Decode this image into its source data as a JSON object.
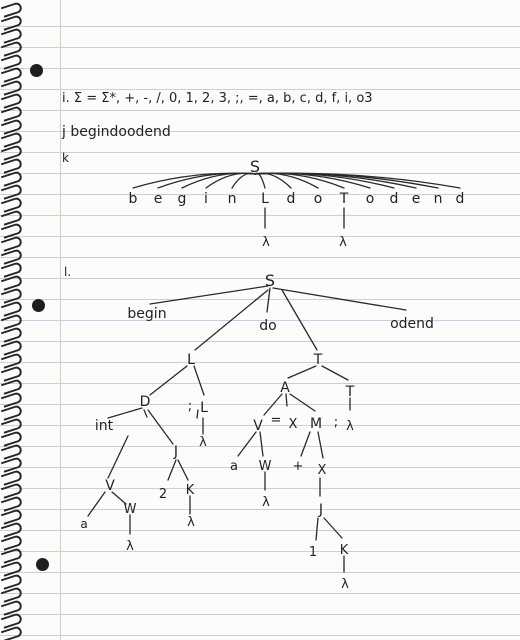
{
  "notes": {
    "line_i_text": "i. Σ = Σ*, +, -, /, 0, 1, 2, 3, ;, =, a, b, c, d, f, i, o3",
    "line_j_text": "j begindoodend",
    "label_k": "k",
    "label_l": "l."
  },
  "tree_k": {
    "root": "S",
    "leaves": [
      "b",
      "e",
      "g",
      "i",
      "n",
      "L",
      "d",
      "o",
      "T",
      "o",
      "d",
      "e",
      "n",
      "d"
    ],
    "lambda_l": "λ",
    "lambda_t": "λ"
  },
  "tree_l": {
    "root": "S",
    "begin": "begin",
    "do": "do",
    "odend": "odend",
    "L": "L",
    "T": "T",
    "D": "D",
    "semi": ";",
    "L2": "L",
    "lam_L2": "λ",
    "int": "int",
    "J": "J",
    "V": "V",
    "two": "2",
    "K": "K",
    "lam_K": "λ",
    "a": "a",
    "W": "W",
    "lam_W": "λ",
    "A": "A",
    "semi2": ";",
    "T2": "T",
    "lam_T2": "λ",
    "V2": "V",
    "eq": "=",
    "X": "X",
    "M": "M",
    "a2": "a",
    "W2": "W",
    "lam_W2": "λ",
    "plus": "+",
    "X2": "X",
    "J2": "J",
    "one": "1",
    "K2": "K",
    "lam_K2": "λ"
  }
}
